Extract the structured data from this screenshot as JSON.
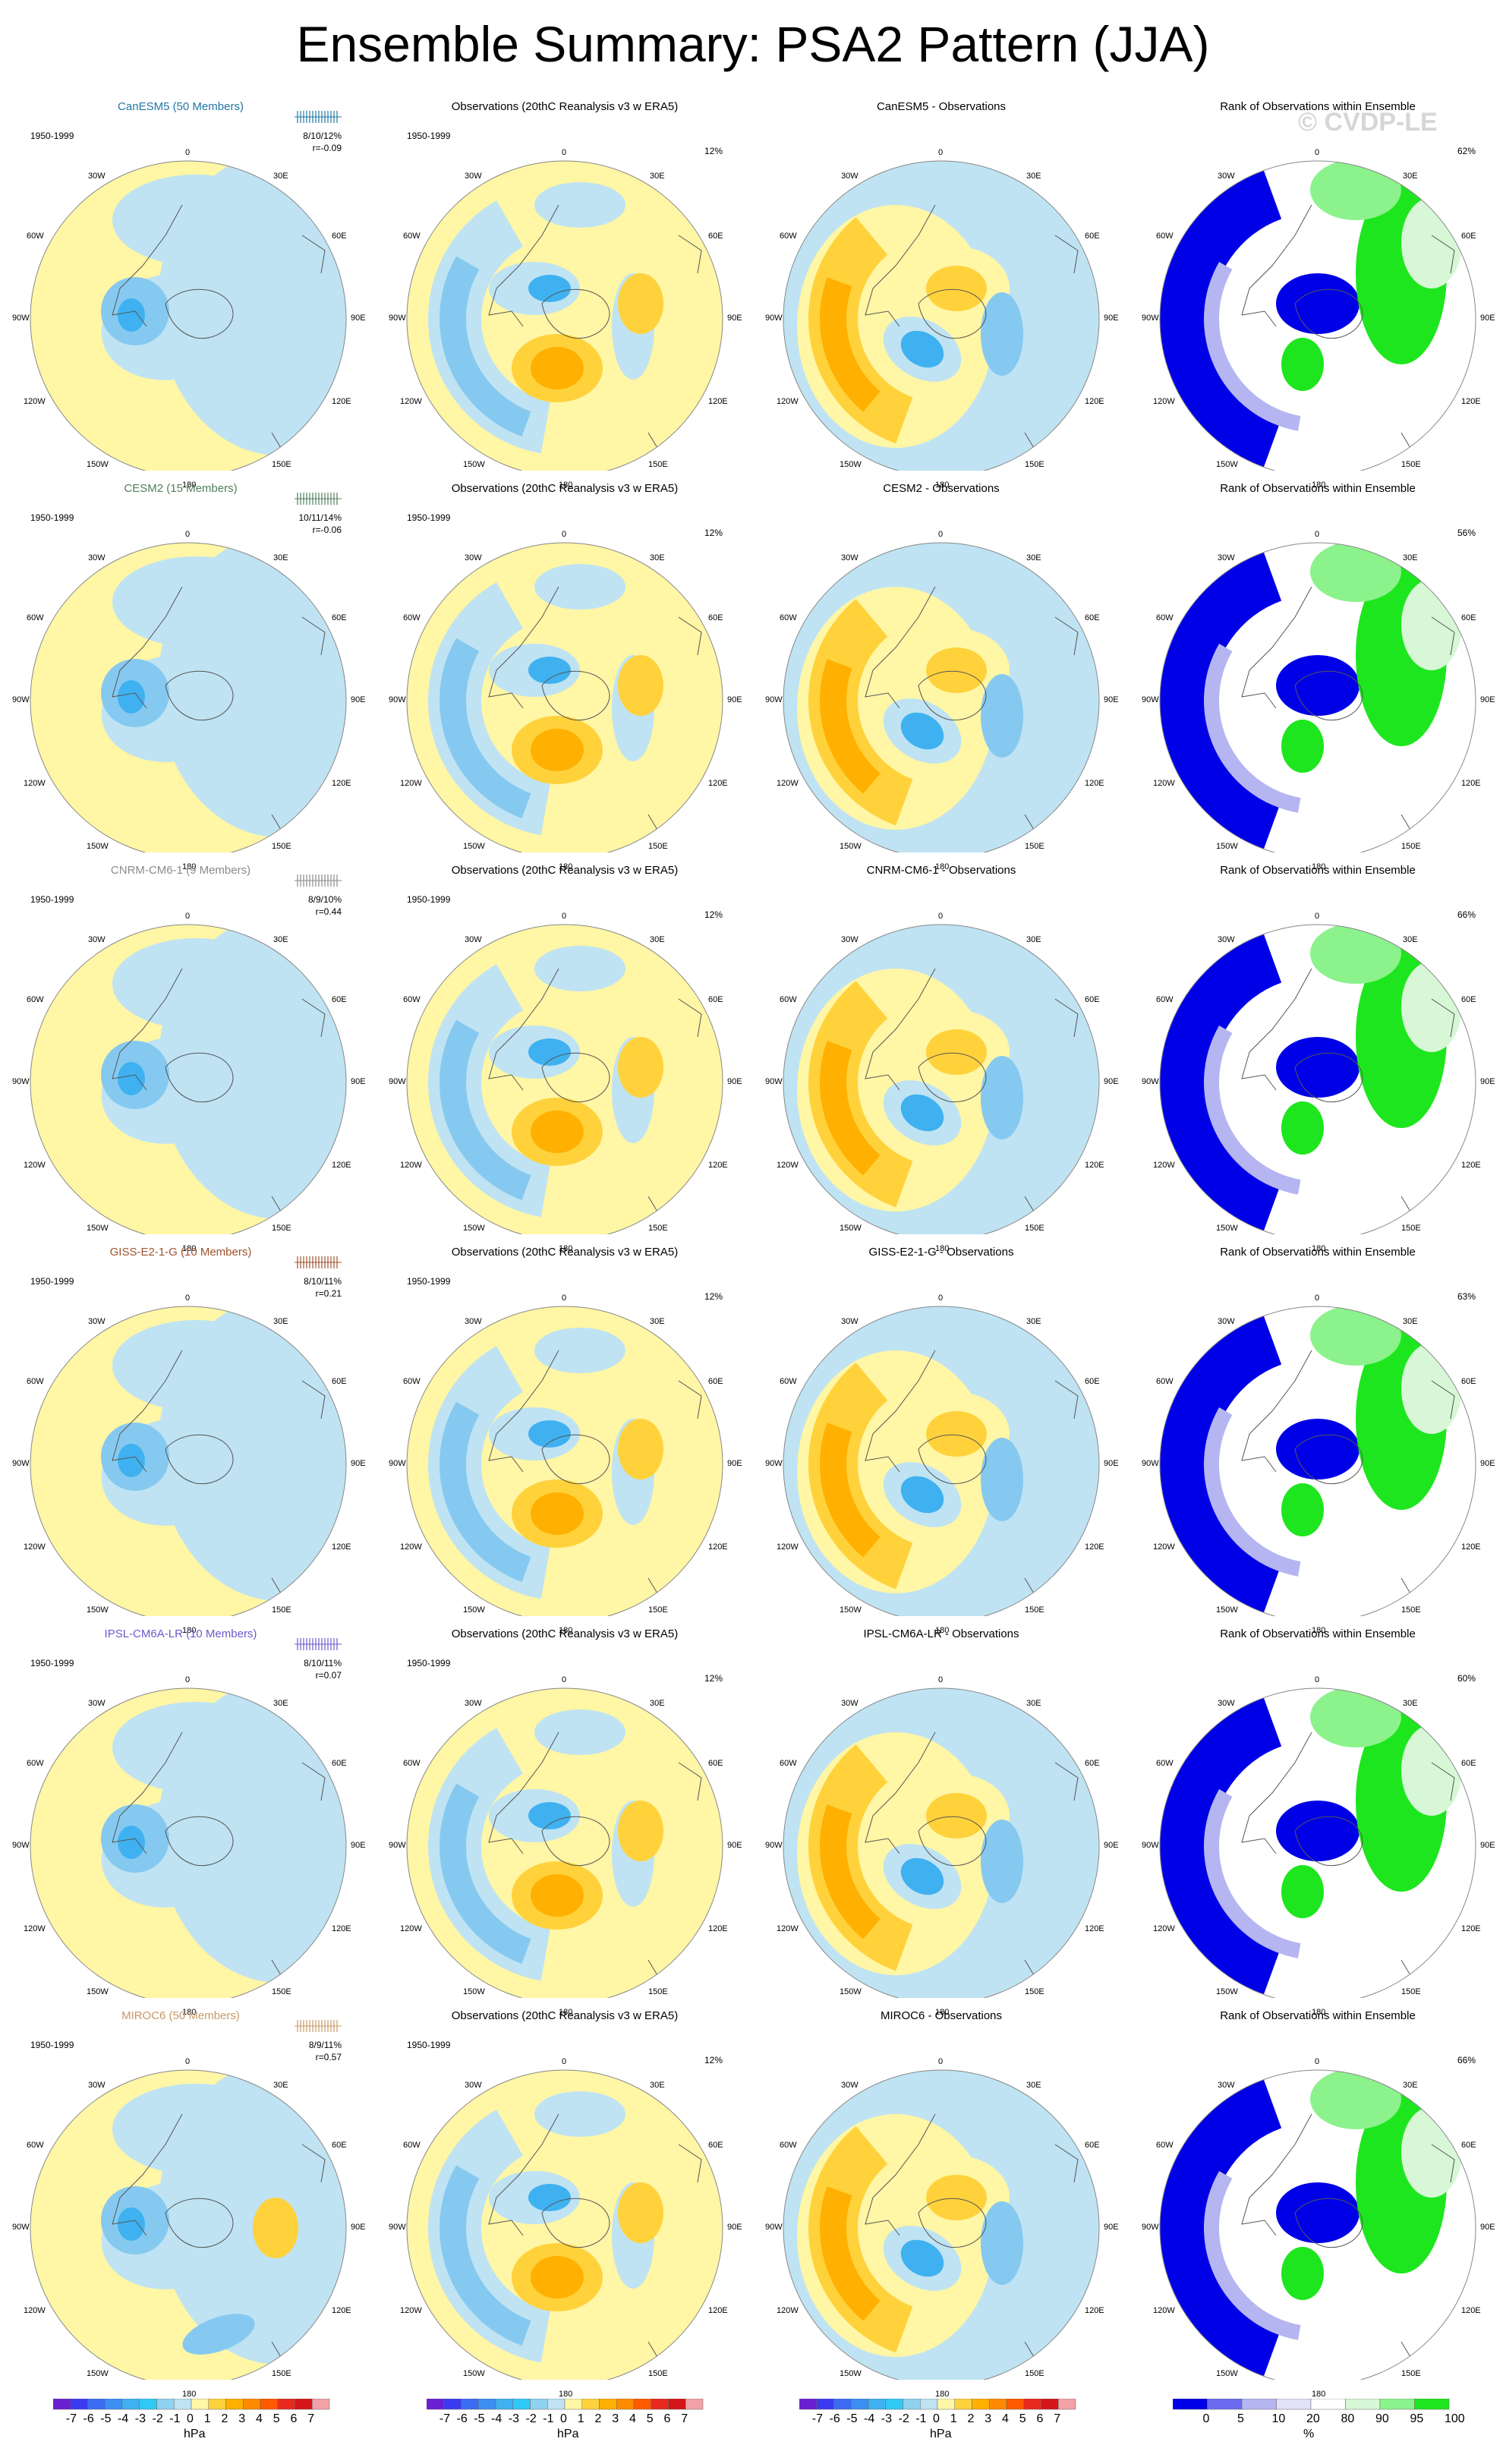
{
  "title": "Ensemble Summary: PSA2 Pattern (JJA)",
  "watermark": "© CVDP-LE",
  "period": "1950-1999",
  "column_titles": {
    "obs": "Observations (20thC Reanalysis v3 w ERA5)",
    "rank": "Rank of Observations within Ensemble",
    "diff_suffix": " - Observations"
  },
  "obs_pct": "12%",
  "rows": [
    {
      "model": "CanESM5 (50 Members)",
      "model_short": "CanESM5",
      "color": "#1f77a4",
      "stat": "8/10/12%",
      "r": "r=-0.09",
      "rank_pct": "62%"
    },
    {
      "model": "CESM2 (15 Members)",
      "model_short": "CESM2",
      "color": "#4f7f5a",
      "stat": "10/11/14%",
      "r": "r=-0.06",
      "rank_pct": "56%"
    },
    {
      "model": "CNRM-CM6-1 (9 Members)",
      "model_short": "CNRM-CM6-1",
      "color": "#8a8a8a",
      "stat": "8/9/10%",
      "r": "r=0.44",
      "rank_pct": "66%"
    },
    {
      "model": "GISS-E2-1-G (10 Members)",
      "model_short": "GISS-E2-1-G",
      "color": "#a0522d",
      "stat": "8/10/11%",
      "r": "r=0.21",
      "rank_pct": "63%"
    },
    {
      "model": "IPSL-CM6A-LR (10 Members)",
      "model_short": "IPSL-CM6A-LR",
      "color": "#6a5acd",
      "stat": "8/10/11%",
      "r": "r=0.07",
      "rank_pct": "60%"
    },
    {
      "model": "MIROC6 (50 Members)",
      "model_short": "MIROC6",
      "color": "#c89968",
      "stat": "8/9/11%",
      "r": "r=0.57",
      "rank_pct": "66%"
    }
  ],
  "map_labels": {
    "top": "0",
    "bottom": "180",
    "left": "90W",
    "right": "90E",
    "ul1": "30W",
    "ul2": "60W",
    "ur1": "30E",
    "ur2": "60E",
    "ll1": "120W",
    "ll2": "150W",
    "lr1": "120E",
    "lr2": "150E"
  },
  "colorbar": {
    "ticks": [
      "-7",
      "-6",
      "-5",
      "-4",
      "-3",
      "-2",
      "-1",
      "0",
      "1",
      "2",
      "3",
      "4",
      "5",
      "6",
      "7"
    ],
    "unit": "hPa",
    "colors": [
      "#6a1fd1",
      "#3a3af0",
      "#3b6cf2",
      "#3c8ef0",
      "#3fb1f0",
      "#30c8f5",
      "#8fd1f0",
      "#bfe3f3",
      "#fff6a6",
      "#ffd23c",
      "#ffb000",
      "#ff8a00",
      "#ff5a00",
      "#e82a1f",
      "#d4151a",
      "#f2a1a6"
    ],
    "rank_ticks": [
      "0",
      "5",
      "10",
      "20",
      "80",
      "90",
      "95",
      "100"
    ],
    "rank_unit": "%",
    "rank_colors": [
      "#0000e6",
      "#6b6bef",
      "#b5b5f2",
      "#e1e1f7",
      "#ffffff",
      "#d7f7d7",
      "#8cf28c",
      "#1ee61e"
    ]
  },
  "chart_data": {
    "type": "heatmap",
    "description_rows": 6,
    "panels_per_row": [
      "model",
      "observations",
      "model minus observations",
      "rank of observations"
    ],
    "colorbar_range_hPa": [
      -7,
      7
    ],
    "rank_range_pct": [
      0,
      100
    ]
  }
}
